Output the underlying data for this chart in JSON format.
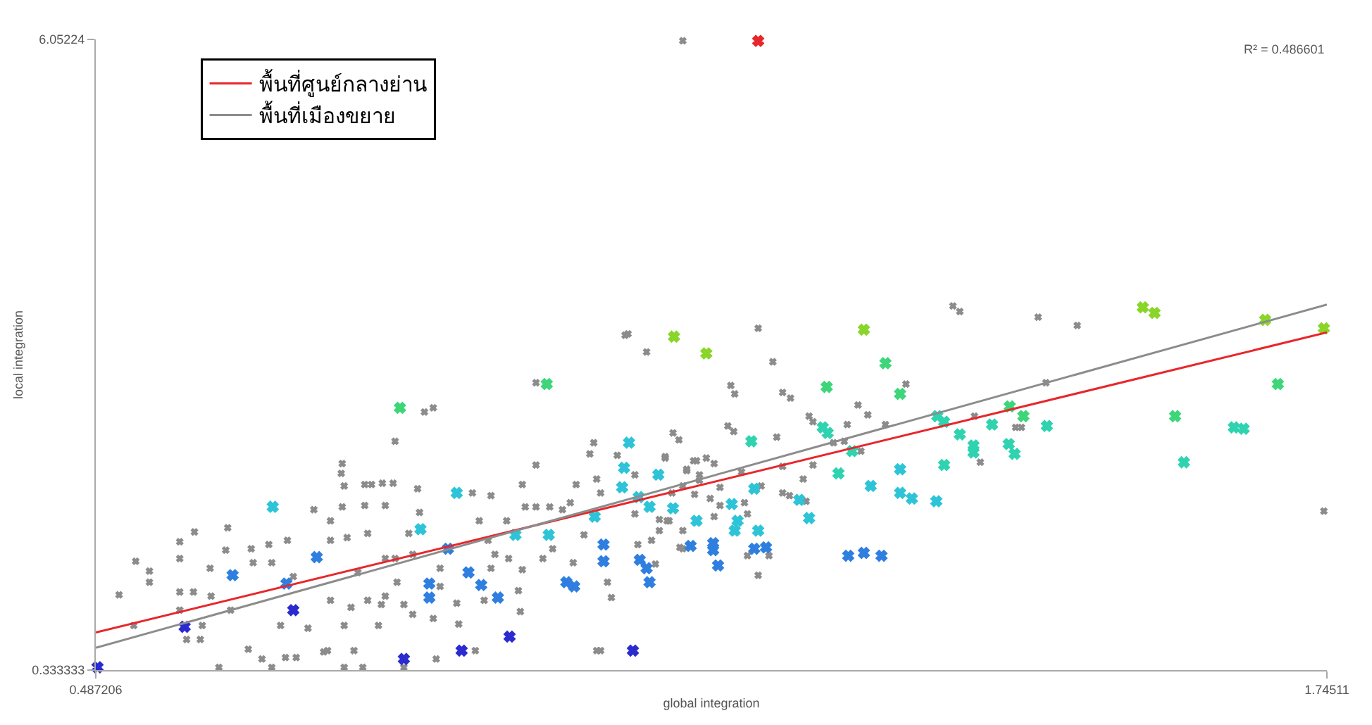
{
  "chart_data": {
    "type": "scatter",
    "xlabel": "global integration",
    "ylabel": "local integration",
    "xlim": [
      0.487206,
      1.74511
    ],
    "ylim": [
      0.333333,
      6.05224
    ],
    "xticks": [
      {
        "value": 0.487206,
        "label": "0.487206"
      },
      {
        "value": 1.74511,
        "label": "1.74511"
      }
    ],
    "yticks": [
      {
        "value": 0.333333,
        "label": "0.333333"
      },
      {
        "value": 6.05224,
        "label": "6.05224"
      }
    ],
    "legend": "top left",
    "annotations": [
      "R² = 0.486601"
    ],
    "series": [
      {
        "marker": "cross",
        "color": "#8c8c8c",
        "x": [
          0.511,
          0.528,
          0.542,
          0.542,
          0.526,
          0.573,
          0.573,
          0.588,
          0.573,
          0.587,
          0.573,
          0.58,
          0.594,
          0.596,
          0.604,
          0.605,
          0.622,
          0.62,
          0.625,
          0.643,
          0.657,
          0.667,
          0.613,
          0.646,
          0.648,
          0.664,
          0.667,
          0.683,
          0.689,
          0.676,
          0.692,
          0.704,
          0.71,
          0.72,
          0.727,
          0.727,
          0.727,
          0.739,
          0.738,
          0.741,
          0.739,
          0.744,
          0.741,
          0.741,
          0.751,
          0.755,
          0.762,
          0.769,
          0.762,
          0.783,
          0.78,
          0.791,
          0.765,
          0.783,
          0.748,
          0.765,
          0.779,
          0.783,
          0.776,
          0.793,
          0.76,
          0.802,
          0.793,
          0.795,
          0.807,
          0.811,
          0.816,
          0.818,
          0.823,
          0.832,
          0.802,
          0.811,
          0.835,
          0.832,
          0.839,
          0.839,
          0.856,
          0.858,
          0.875,
          0.872,
          0.879,
          0.891,
          0.888,
          0.891,
          0.884,
          0.895,
          0.907,
          0.909,
          0.923,
          0.926,
          0.923,
          0.921,
          0.919,
          0.937,
          0.937,
          0.944,
          0.951,
          0.954,
          0.964,
          0.972,
          0.978,
          0.975,
          0.986,
          0.992,
          0.996,
          0.999,
          1.003,
          1.01,
          1.014,
          0.999,
          1.02,
          1.028,
          1.05,
          1.069,
          1.077,
          1.083,
          1.071,
          1.087,
          1.091,
          1.101,
          1.038,
          1.041,
          1.063,
          0.937,
          1.031,
          1.164,
          1.179,
          1.136,
          1.14,
          1.189,
          1.197,
          1.133,
          1.139,
          1.183,
          1.216,
          1.22,
          1.266,
          1.276,
          1.255,
          1.294,
          1.315,
          1.363,
          1.37,
          1.45,
          1.49,
          1.385,
          1.427,
          1.433,
          1.391,
          1.458,
          1.742,
          1.241,
          1.252,
          1.269,
          1.069,
          1.098,
          1.111,
          1.119,
          1.091,
          1.104,
          1.104,
          1.087,
          1.099,
          1.115,
          1.076,
          1.125,
          1.147,
          1.167,
          1.189,
          1.22,
          1.21,
          1.189,
          1.196,
          1.213,
          1.038,
          1.063,
          1.073,
          1.087,
          1.119,
          1.125,
          1.15,
          1.153,
          1.055,
          1.084,
          1.153,
          1.175,
          1.164,
          1.059,
          0.724,
          1.003,
          0.681,
          1.087
        ],
        "values": [
          1.016,
          1.32,
          1.231,
          1.13,
          0.738,
          1.497,
          1.345,
          1.586,
          1.042,
          1.042,
          0.877,
          0.611,
          0.611,
          0.738,
          1.257,
          1.004,
          1.624,
          1.421,
          0.877,
          0.523,
          0.434,
          0.358,
          0.358,
          1.434,
          1.307,
          1.472,
          1.307,
          1.51,
          1.181,
          0.738,
          0.447,
          0.713,
          1.788,
          0.498,
          1.687,
          1.51,
          0.966,
          2.206,
          2.117,
          2.003,
          1.813,
          1.535,
          0.738,
          0.358,
          0.51,
          1.219,
          2.016,
          2.016,
          1.826,
          1.826,
          2.028,
          2.028,
          1.573,
          1.345,
          0.902,
          0.966,
          0.928,
          1.004,
          0.738,
          2.408,
          0.358,
          0.358,
          1.345,
          1.13,
          1.573,
          1.383,
          1.978,
          1.763,
          2.674,
          2.712,
          0.928,
          0.839,
          0.434,
          0.801,
          1.257,
          1.092,
          0.94,
          0.751,
          0.51,
          1.94,
          1.687,
          1.915,
          1.51,
          1.257,
          0.966,
          1.383,
          1.687,
          1.345,
          2.016,
          1.813,
          1.244,
          0.864,
          1.054,
          2.193,
          1.813,
          1.345,
          1.813,
          1.434,
          1.788,
          1.851,
          2.016,
          1.307,
          1.56,
          2.294,
          2.395,
          2.066,
          1.94,
          1.13,
          0.991,
          0.51,
          2.281,
          3.37,
          3.218,
          2.256,
          2.484,
          2.421,
          1.687,
          1.434,
          2.142,
          2.231,
          2.104,
          1.472,
          1.598,
          2.939,
          3.382,
          3.433,
          3.129,
          2.914,
          2.838,
          2.851,
          2.8,
          2.547,
          2.497,
          2.446,
          2.636,
          2.585,
          2.737,
          2.648,
          2.56,
          2.56,
          2.927,
          3.635,
          3.585,
          3.534,
          3.458,
          2.636,
          2.534,
          2.534,
          2.218,
          2.939,
          1.775,
          2.395,
          2.408,
          2.319,
          2.269,
          2.231,
          2.256,
          2.206,
          2.155,
          2.104,
          2.054,
          2.003,
          1.927,
          1.889,
          1.94,
          1.99,
          2.13,
          2.003,
          2.18,
          2.193,
          2.066,
          1.94,
          1.915,
          1.864,
          1.75,
          1.699,
          1.687,
          1.598,
          1.725,
          1.826,
          1.851,
          1.75,
          1.51,
          1.446,
          1.371,
          1.371,
          1.193,
          1.295,
          0.51,
          0.51,
          0.447,
          6.04
        ]
      },
      {
        "marker": "cross",
        "x": [
          0.489,
          0.668,
          0.627,
          0.578,
          0.682,
          0.689,
          0.713,
          0.798,
          0.948,
          0.856,
          0.819,
          0.847,
          0.828,
          0.828,
          0.868,
          0.881,
          0.898,
          0.91,
          0.861,
          0.802,
          1.036,
          0.916,
          0.95,
          0.997,
          0.968,
          0.976,
          1.006,
          1.006,
          1.043,
          1.05,
          1.053,
          1.025,
          1.027,
          1.032,
          1.042,
          1.053,
          1.062,
          1.077,
          1.101,
          1.095,
          1.078,
          1.111,
          1.272,
          1.294,
          1.234,
          1.309,
          1.557,
          1.569,
          1.682,
          1.742,
          1.695,
          1.59,
          1.421,
          1.435,
          1.347,
          1.354,
          1.37,
          1.403,
          1.459,
          1.65,
          1.66,
          1.599,
          1.384,
          1.384,
          1.42,
          1.426,
          1.354,
          1.309,
          1.346,
          1.279,
          1.309,
          1.321,
          1.246,
          1.26,
          1.23,
          1.235,
          1.157,
          1.16,
          1.164,
          1.206,
          1.216,
          1.137,
          1.143,
          1.14,
          1.118,
          1.118,
          1.123,
          1.16,
          1.172,
          1.256,
          1.272,
          1.29,
          1.164
        ],
        "values": [
          0.359,
          1.814,
          1.194,
          0.726,
          1.118,
          0.877,
          1.358,
          2.712,
          2.927,
          1.94,
          1.611,
          1.434,
          1.118,
          0.991,
          1.219,
          1.105,
          0.991,
          0.637,
          0.51,
          0.434,
          0.51,
          1.56,
          1.56,
          1.725,
          1.13,
          1.092,
          1.472,
          1.32,
          1.333,
          1.257,
          1.13,
          1.991,
          2.168,
          2.396,
          1.902,
          1.814,
          2.105,
          1.801,
          1.687,
          1.459,
          3.357,
          3.205,
          3.42,
          3.116,
          2.901,
          2.838,
          3.623,
          3.572,
          3.509,
          3.433,
          2.927,
          2.636,
          2.724,
          2.636,
          2.636,
          2.585,
          2.471,
          2.56,
          2.547,
          2.534,
          2.522,
          2.218,
          2.37,
          2.307,
          2.383,
          2.294,
          2.193,
          2.155,
          1.864,
          2.003,
          1.94,
          1.889,
          2.117,
          2.319,
          2.534,
          2.484,
          2.408,
          1.978,
          1.598,
          1.877,
          1.712,
          1.839,
          1.687,
          1.598,
          1.484,
          1.421,
          1.282,
          1.434,
          1.446,
          1.37,
          1.396,
          1.37,
          6.039
        ],
        "colors": [
          "#2b2bd0",
          "#2ec4d8",
          "#2f7fe0",
          "#2b2bd0",
          "#2f7fe0",
          "#2b2bd0",
          "#2f7fe0",
          "#3dd67a",
          "#3dd67a",
          "#2ec4d8",
          "#2ec4d8",
          "#2f7fe0",
          "#2f7fe0",
          "#2f7fe0",
          "#2f7fe0",
          "#2f7fe0",
          "#2f7fe0",
          "#2b2bd0",
          "#2b2bd0",
          "#2b2bd0",
          "#2b2bd0",
          "#2ec4d8",
          "#2ec4d8",
          "#2ec4d8",
          "#2f7fe0",
          "#2f7fe0",
          "#2f7fe0",
          "#2f7fe0",
          "#2f7fe0",
          "#2f7fe0",
          "#2f7fe0",
          "#2ec4d8",
          "#2ec4d8",
          "#2ec4d8",
          "#2ec4d8",
          "#2ec4d8",
          "#2ec4d8",
          "#2ec4d8",
          "#2ec4d8",
          "#2f7fe0",
          "#8ad52a",
          "#8ad52a",
          "#8ad52a",
          "#3dd67a",
          "#3dd67a",
          "#3dd67a",
          "#8ad52a",
          "#8ad52a",
          "#8ad52a",
          "#8ad52a",
          "#3dd67a",
          "#3dd67a",
          "#3dd67a",
          "#3dd67a",
          "#2fd3b0",
          "#2fd3b0",
          "#2fd3b0",
          "#2fd3b0",
          "#2fd3b0",
          "#2fd3b0",
          "#2fd3b0",
          "#2fd3b0",
          "#2fd3b0",
          "#2fd3b0",
          "#2fd3b0",
          "#2fd3b0",
          "#2fd3b0",
          "#2ec4d8",
          "#2ec4d8",
          "#2ec4d8",
          "#2ec4d8",
          "#2ec4d8",
          "#2fd3b0",
          "#2fd3b0",
          "#2fd3b0",
          "#2fd3b0",
          "#2fd3b0",
          "#2ec4d8",
          "#2ec4d8",
          "#2ec4d8",
          "#2ec4d8",
          "#2ec4d8",
          "#2ec4d8",
          "#2ec4d8",
          "#2f7fe0",
          "#2f7fe0",
          "#2f7fe0",
          "#2f7fe0",
          "#2f7fe0",
          "#2f7fe0",
          "#2f7fe0",
          "#2f7fe0",
          "#e8262b"
        ]
      },
      {
        "type": "line",
        "name": "พื้นที่ศูนย์กลางย่าน",
        "color": "#e8262b",
        "line_style": "solid",
        "x": [
          0.487206,
          1.74511
        ],
        "values": [
          0.675,
          3.395
        ]
      },
      {
        "type": "line",
        "name": "พื้นที่เมืองขยาย",
        "color": "#8c8c8c",
        "line_style": "solid",
        "x": [
          0.487206,
          1.74511
        ],
        "values": [
          0.536,
          3.648
        ]
      }
    ]
  }
}
